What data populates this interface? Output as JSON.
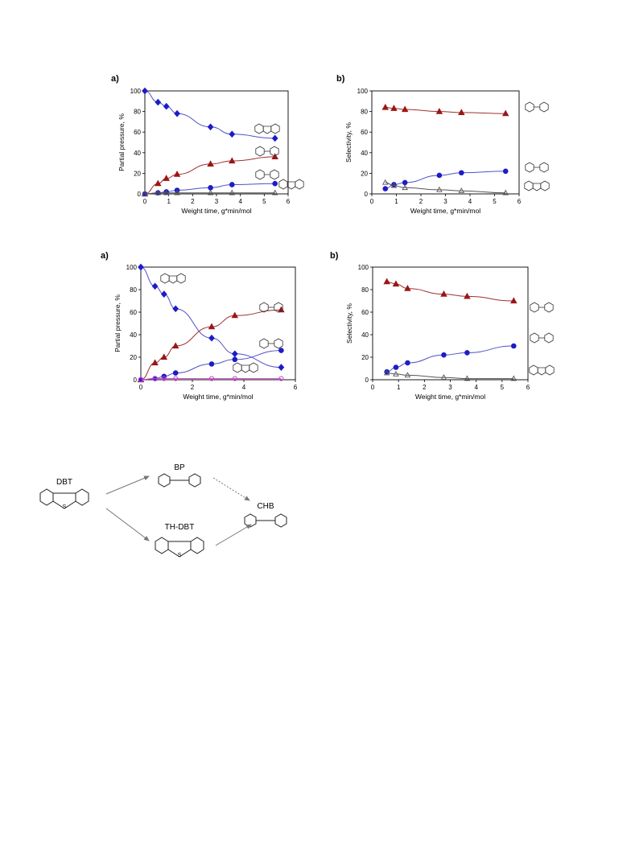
{
  "colors": {
    "blue": "#1c1cc8",
    "red": "#9a1616",
    "grey": "#555555",
    "magenta": "#d040d0",
    "line_blue": "#5050c8",
    "line_red": "#a03030"
  },
  "chart_data": [
    {
      "type": "scatter",
      "panel_label": "a)",
      "xlabel": "Weight time, g*min/mol",
      "ylabel": "Partial pressure, %",
      "xlim": [
        0,
        6
      ],
      "ylim": [
        0,
        100
      ],
      "xticks": [
        "0",
        "1",
        "2",
        "3",
        "4",
        "5",
        "6"
      ],
      "yticks": [
        "0",
        "20",
        "40",
        "60",
        "80",
        "100"
      ],
      "series": [
        {
          "color": "blue",
          "marker": "diamond",
          "icon": "dibenzothiophene",
          "x": [
            0,
            0.55,
            0.9,
            1.35,
            2.75,
            3.65,
            5.45
          ],
          "y": [
            100,
            89,
            85,
            78,
            65,
            58,
            54
          ]
        },
        {
          "color": "red",
          "marker": "triangle",
          "icon": "biphenyl",
          "x": [
            0,
            0.55,
            0.9,
            1.35,
            2.75,
            3.65,
            5.45
          ],
          "y": [
            0,
            10,
            15,
            19,
            29,
            32,
            36
          ]
        },
        {
          "color": "blue",
          "marker": "circle",
          "icon": "cyclohexylbenzene",
          "x": [
            0,
            0.55,
            0.9,
            1.35,
            2.75,
            3.65,
            5.45
          ],
          "y": [
            0,
            1,
            2,
            3.5,
            6,
            9,
            10
          ]
        },
        {
          "color": "grey",
          "marker": "open-star",
          "icon": "tetrahydrodibenzothiophene",
          "x": [
            0,
            0.55,
            0.9,
            1.35,
            2.75,
            3.65,
            5.45
          ],
          "y": [
            0,
            1,
            1,
            1,
            1,
            1,
            1
          ]
        }
      ]
    },
    {
      "type": "scatter",
      "panel_label": "b)",
      "xlabel": "Weight time, g*min/mol",
      "ylabel": "Selectivity, %",
      "xlim": [
        0,
        6
      ],
      "ylim": [
        0,
        100
      ],
      "xticks": [
        "0",
        "1",
        "2",
        "3",
        "4",
        "5",
        "6"
      ],
      "yticks": [
        "0",
        "20",
        "40",
        "60",
        "80",
        "100"
      ],
      "series": [
        {
          "color": "red",
          "marker": "triangle",
          "icon": "biphenyl",
          "x": [
            0.55,
            0.9,
            1.35,
            2.75,
            3.65,
            5.45
          ],
          "y": [
            84,
            83,
            82,
            80,
            79,
            78
          ]
        },
        {
          "color": "blue",
          "marker": "circle",
          "icon": "cyclohexylbenzene",
          "x": [
            0.55,
            0.9,
            1.35,
            2.75,
            3.65,
            5.45
          ],
          "y": [
            5,
            9,
            11,
            18,
            20.5,
            22
          ]
        },
        {
          "color": "grey",
          "marker": "open-star",
          "icon": "tetrahydrodibenzothiophene",
          "x": [
            0.55,
            0.9,
            1.35,
            2.75,
            3.65,
            5.45
          ],
          "y": [
            11,
            8,
            6,
            4,
            3,
            1
          ]
        }
      ]
    },
    {
      "type": "scatter",
      "panel_label": "a)",
      "xlabel": "Weight time, g*min/mol",
      "ylabel": "Partial pressure, %",
      "xlim": [
        0,
        6
      ],
      "ylim": [
        0,
        100
      ],
      "xticks": [
        "0",
        "2",
        "4",
        "6"
      ],
      "yticks": [
        "0",
        "20",
        "40",
        "60",
        "80",
        "100"
      ],
      "series": [
        {
          "color": "blue",
          "marker": "diamond",
          "icon": "dibenzothiophene",
          "x": [
            0,
            0.55,
            0.9,
            1.35,
            2.75,
            3.65,
            5.45
          ],
          "y": [
            100,
            83,
            76,
            63,
            37,
            23,
            11
          ]
        },
        {
          "color": "red",
          "marker": "triangle",
          "icon": "biphenyl",
          "x": [
            0,
            0.55,
            0.9,
            1.35,
            2.75,
            3.65,
            5.45
          ],
          "y": [
            0,
            15,
            20,
            30,
            47,
            57,
            62
          ]
        },
        {
          "color": "blue",
          "marker": "circle",
          "icon": "cyclohexylbenzene",
          "x": [
            0,
            0.55,
            0.9,
            1.35,
            2.75,
            3.65,
            5.45
          ],
          "y": [
            0,
            1,
            3,
            6,
            14,
            18,
            26
          ]
        },
        {
          "color": "magenta",
          "marker": "open-circle",
          "icon": "tetrahydrodibenzothiophene",
          "x": [
            0,
            0.55,
            0.9,
            1.35,
            2.75,
            3.65,
            5.45
          ],
          "y": [
            0,
            1,
            1,
            1,
            1,
            1,
            1
          ]
        }
      ]
    },
    {
      "type": "scatter",
      "panel_label": "b)",
      "xlabel": "Weight time, g*min/mol",
      "ylabel": "Selectivity, %",
      "xlim": [
        0,
        6
      ],
      "ylim": [
        0,
        100
      ],
      "xticks": [
        "0",
        "1",
        "2",
        "3",
        "4",
        "5",
        "6"
      ],
      "yticks": [
        "0",
        "20",
        "40",
        "60",
        "80",
        "100"
      ],
      "series": [
        {
          "color": "red",
          "marker": "triangle",
          "icon": "biphenyl",
          "x": [
            0.55,
            0.9,
            1.35,
            2.75,
            3.65,
            5.45
          ],
          "y": [
            87,
            85,
            81,
            76,
            74,
            70
          ]
        },
        {
          "color": "blue",
          "marker": "circle",
          "icon": "cyclohexylbenzene",
          "x": [
            0.55,
            0.9,
            1.35,
            2.75,
            3.65,
            5.45
          ],
          "y": [
            7,
            11,
            15,
            22,
            24,
            30
          ]
        },
        {
          "color": "grey",
          "marker": "open-star",
          "icon": "tetrahydrodibenzothiophene",
          "x": [
            0.55,
            0.9,
            1.35,
            2.75,
            3.65,
            5.45
          ],
          "y": [
            6,
            5,
            4,
            2,
            1,
            1
          ]
        }
      ]
    }
  ],
  "scheme": {
    "dbt": "DBT",
    "bp": "BP",
    "chb": "CHB",
    "thdbt": "TH-DBT",
    "s": "S"
  }
}
